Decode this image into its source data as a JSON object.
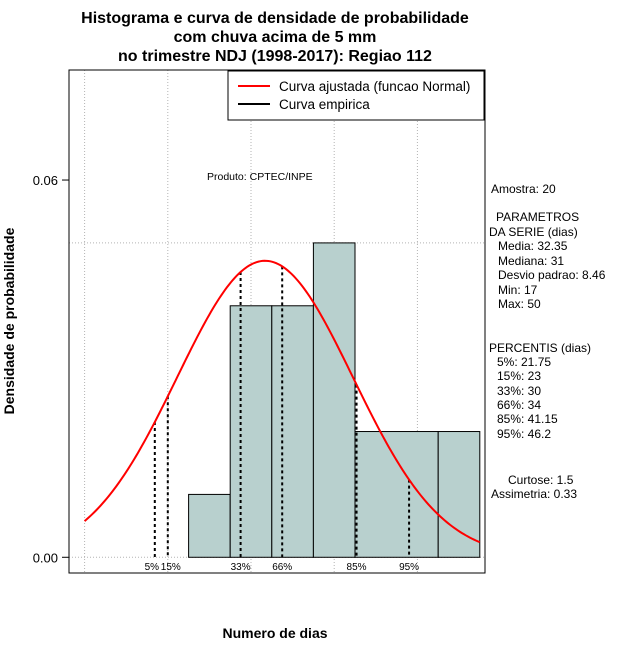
{
  "chart_data": {
    "type": "bar",
    "title_lines": [
      "Histograma e curva de densidade de probabilidade",
      "com chuva acima de 5 mm",
      "no trimestre NDJ (1998-2017): Regiao 112"
    ],
    "xlabel": "Numero de dias",
    "ylabel": "Densidade de probabilidade",
    "xlim": [
      13.5,
      53.5
    ],
    "ylim": [
      -0.0025,
      0.0775
    ],
    "y_ticks": [
      0.0,
      0.06
    ],
    "y_tick_labels": [
      "0.00",
      "0.06"
    ],
    "x_gridlines": [
      15,
      23,
      31,
      39,
      47
    ],
    "y_gridlines": [
      0.0,
      0.05
    ],
    "bins": [
      {
        "start": 25,
        "end": 29,
        "density": 0.01
      },
      {
        "start": 29,
        "end": 33,
        "density": 0.04
      },
      {
        "start": 33,
        "end": 37,
        "density": 0.04
      },
      {
        "start": 37,
        "end": 41,
        "density": 0.05
      },
      {
        "start": 41,
        "end": 49,
        "density": 0.02
      },
      {
        "start": 49,
        "end": 53,
        "density": 0.02
      }
    ],
    "bar_color": "#b8d0ce",
    "normal_curve": {
      "mean": 32.35,
      "sd": 8.46,
      "x_range": [
        15,
        53
      ],
      "color": "#ff0000"
    },
    "percentile_lines": [
      {
        "label": "5%",
        "x": 21.75
      },
      {
        "label": "15%",
        "x": 23
      },
      {
        "label": "33%",
        "x": 30
      },
      {
        "label": "66%",
        "x": 34
      },
      {
        "label": "85%",
        "x": 41.15
      },
      {
        "label": "95%",
        "x": 46.2
      }
    ],
    "legend": {
      "position": "top-right",
      "entries": [
        {
          "label": "Curva ajustada (funcao Normal)",
          "color": "#ff0000"
        },
        {
          "label": "Curva empirica",
          "color": "#000000"
        }
      ]
    },
    "credit": "Produto: CPTEC/INPE"
  },
  "stats_panel": {
    "lines": [
      "Amostra: 20",
      "PARAMETROS",
      "DA SERIE (dias)",
      "Media: 32.35",
      "Mediana: 31",
      "Desvio padrao: 8.46",
      "Min: 17",
      "Max: 50",
      "PERCENTIS (dias)",
      "5%: 21.75",
      "15%: 23",
      "33%: 30",
      "66%: 34",
      "85%: 41.15",
      "95%: 46.2",
      "Curtose: 1.5",
      "Assimetria: 0.33"
    ]
  }
}
